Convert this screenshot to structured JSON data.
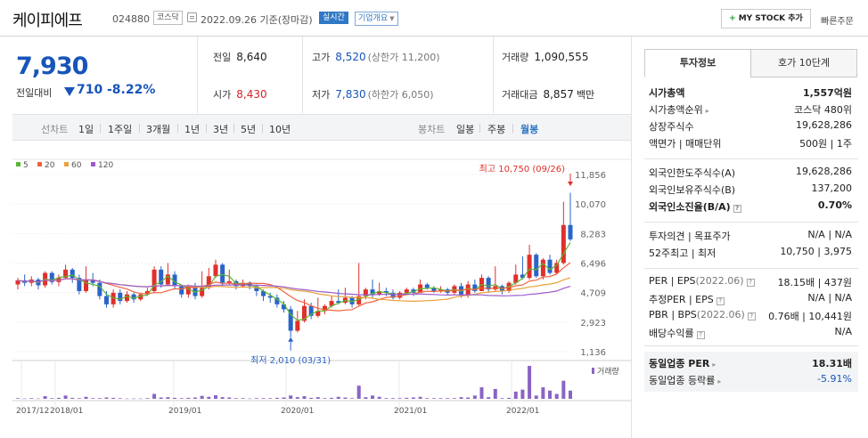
{
  "header": {
    "name": "케이피에프",
    "code": "024880",
    "market": "코스닥",
    "date": "2022.09.26 기준(장마감)",
    "realtime_label": "실시간",
    "overview_label": "기업개요",
    "mystock_label": "MY STOCK 추가",
    "quick_label": "빠른주문"
  },
  "price": {
    "current": "7,930",
    "change_label": "전일대비",
    "change": "710",
    "change_pct": "-8.22%"
  },
  "stats": {
    "prev_label": "전일",
    "prev": "8,640",
    "open_label": "시가",
    "open": "8,430",
    "high_label": "고가",
    "high": "8,520",
    "upper_limit": "(상한가 11,200)",
    "low_label": "저가",
    "low": "7,830",
    "lower_limit": "(하한가 6,050)",
    "volume_label": "거래량",
    "volume": "1,090,555",
    "amount_label": "거래대금",
    "amount": "8,857",
    "amount_unit": "백만"
  },
  "periods": {
    "line_label": "선차트",
    "line_items": [
      "1일",
      "1주일",
      "3개월",
      "1년",
      "3년",
      "5년",
      "10년"
    ],
    "candle_label": "봉차트",
    "candle_items": [
      "일봉",
      "주봉",
      "월봉"
    ],
    "active_candle": "월봉"
  },
  "chart_data": {
    "type": "candlestick",
    "ma_legend": [
      {
        "label": "5",
        "color": "#5cb531"
      },
      {
        "label": "20",
        "color": "#f0623c"
      },
      {
        "label": "60",
        "color": "#e9a23b"
      },
      {
        "label": "120",
        "color": "#9b5bcc"
      }
    ],
    "ylim": [
      1136,
      11856
    ],
    "y_ticks": [
      "11,856",
      "10,070",
      "8,283",
      "6,496",
      "4,709",
      "2,923",
      "1,136"
    ],
    "x_ticks": [
      "2017/12",
      "2018/01",
      "2019/01",
      "2020/01",
      "2021/01",
      "2022/01"
    ],
    "max_annotation": "최고 10,750 (09/26)",
    "min_annotation": "최저 2,010 (03/31)",
    "volume_label": "거래량",
    "candles": [
      [
        5200,
        5450,
        5600,
        4900
      ],
      [
        5450,
        5300,
        5800,
        5100
      ],
      [
        5300,
        5500,
        5700,
        5100
      ],
      [
        5500,
        5150,
        5600,
        4900
      ],
      [
        5150,
        5900,
        6000,
        5000
      ],
      [
        5900,
        5350,
        6000,
        5200
      ],
      [
        5350,
        5600,
        5800,
        5100
      ],
      [
        5600,
        6100,
        6400,
        5500
      ],
      [
        6100,
        5600,
        6200,
        5300
      ],
      [
        5600,
        4800,
        5800,
        4600
      ],
      [
        4800,
        5500,
        6300,
        4700
      ],
      [
        5500,
        5300,
        5900,
        5100
      ],
      [
        5300,
        4500,
        5500,
        4300
      ],
      [
        4500,
        4000,
        4800,
        3800
      ],
      [
        4000,
        4700,
        4900,
        3800
      ],
      [
        4700,
        4200,
        4900,
        4000
      ],
      [
        4200,
        4600,
        4800,
        4100
      ],
      [
        4600,
        4300,
        4700,
        4100
      ],
      [
        4300,
        4600,
        4700,
        4200
      ],
      [
        4600,
        4800,
        5000,
        4500
      ],
      [
        4800,
        6100,
        6300,
        4700
      ],
      [
        6100,
        5200,
        6300,
        5000
      ],
      [
        5200,
        5800,
        6500,
        5100
      ],
      [
        5800,
        5100,
        6000,
        4900
      ],
      [
        5100,
        4600,
        5200,
        4400
      ],
      [
        4600,
        5100,
        5200,
        4400
      ],
      [
        5100,
        4500,
        5300,
        4300
      ],
      [
        4500,
        5000,
        6000,
        4400
      ],
      [
        5000,
        5700,
        6200,
        4900
      ],
      [
        5700,
        6400,
        6700,
        5600
      ],
      [
        6400,
        5300,
        6500,
        5100
      ],
      [
        5300,
        5400,
        6100,
        5200
      ],
      [
        5400,
        5100,
        5500,
        4900
      ],
      [
        5100,
        5300,
        5500,
        5000
      ],
      [
        5300,
        5100,
        5400,
        4900
      ],
      [
        5100,
        4800,
        5200,
        4500
      ],
      [
        4800,
        4500,
        4900,
        4200
      ],
      [
        4500,
        4400,
        4700,
        4100
      ],
      [
        4400,
        4000,
        4600,
        3800
      ],
      [
        4000,
        3700,
        4200,
        3500
      ],
      [
        3700,
        2400,
        3900,
        2010
      ],
      [
        2400,
        3000,
        3600,
        2300
      ],
      [
        3000,
        3900,
        4300,
        2900
      ],
      [
        3900,
        3300,
        4100,
        3100
      ],
      [
        3300,
        3600,
        4400,
        3200
      ],
      [
        3600,
        3900,
        4000,
        3400
      ],
      [
        3900,
        4200,
        4500,
        3800
      ],
      [
        4200,
        4100,
        4900,
        4000
      ],
      [
        4100,
        4400,
        5000,
        4000
      ],
      [
        4400,
        4000,
        4500,
        3800
      ],
      [
        4000,
        4500,
        6500,
        3900
      ],
      [
        4500,
        4900,
        5000,
        4300
      ],
      [
        4900,
        4600,
        5500,
        4400
      ],
      [
        4600,
        4800,
        5300,
        4500
      ],
      [
        4800,
        4700,
        5000,
        4500
      ],
      [
        4700,
        4400,
        4900,
        4300
      ],
      [
        4400,
        4700,
        4800,
        4300
      ],
      [
        4700,
        4900,
        5000,
        4600
      ],
      [
        4900,
        4700,
        5000,
        4500
      ],
      [
        4700,
        5200,
        5500,
        4700
      ],
      [
        5200,
        5000,
        5300,
        4900
      ],
      [
        5000,
        4800,
        5100,
        4700
      ],
      [
        4800,
        4900,
        5100,
        4700
      ],
      [
        4900,
        4700,
        5000,
        4600
      ],
      [
        4700,
        5100,
        5200,
        4600
      ],
      [
        5100,
        4600,
        5300,
        4400
      ],
      [
        4600,
        5200,
        5400,
        4400
      ],
      [
        5200,
        4800,
        5500,
        4700
      ],
      [
        4800,
        5600,
        5800,
        4800
      ],
      [
        5600,
        4900,
        5700,
        4700
      ],
      [
        4900,
        5100,
        6300,
        4800
      ],
      [
        5100,
        4800,
        5200,
        4600
      ],
      [
        4800,
        5300,
        5400,
        4700
      ],
      [
        5300,
        5800,
        6400,
        5200
      ],
      [
        5800,
        5600,
        6900,
        5500
      ],
      [
        5600,
        7000,
        7600,
        5500
      ],
      [
        7000,
        5700,
        7100,
        5600
      ],
      [
        5700,
        6700,
        6800,
        5500
      ],
      [
        6700,
        5900,
        7000,
        5800
      ],
      [
        5900,
        6500,
        6700,
        5800
      ],
      [
        6500,
        8800,
        10200,
        6400
      ],
      [
        8800,
        7930,
        10750,
        7830
      ]
    ],
    "volumes": [
      0.02,
      0.01,
      0.02,
      0.01,
      0.08,
      0.02,
      0.03,
      0.1,
      0.03,
      0.02,
      0.06,
      0.02,
      0.02,
      0.04,
      0.03,
      0.02,
      0.01,
      0.01,
      0.01,
      0.02,
      0.15,
      0.04,
      0.05,
      0.03,
      0.02,
      0.03,
      0.04,
      0.09,
      0.06,
      0.11,
      0.05,
      0.04,
      0.02,
      0.02,
      0.01,
      0.02,
      0.02,
      0.02,
      0.03,
      0.04,
      0.1,
      0.05,
      0.08,
      0.03,
      0.05,
      0.02,
      0.03,
      0.06,
      0.04,
      0.02,
      0.4,
      0.05,
      0.1,
      0.06,
      0.02,
      0.02,
      0.02,
      0.03,
      0.04,
      0.06,
      0.02,
      0.02,
      0.02,
      0.02,
      0.02,
      0.05,
      0.04,
      0.1,
      0.35,
      0.05,
      0.3,
      0.02,
      0.03,
      0.22,
      0.28,
      1.0,
      0.1,
      0.35,
      0.25,
      0.15,
      0.55,
      0.25
    ]
  },
  "invest": {
    "tab_active": "투자정보",
    "tab_other": "호가 10단계",
    "rows": [
      {
        "k": "시가총액",
        "v": "1,557억원",
        "kb": true,
        "vb": true
      },
      {
        "k": "시가총액순위",
        "v": "코스닥 480위",
        "arrow": "▸"
      },
      {
        "k": "상장주식수",
        "v": "19,628,286"
      },
      {
        "k": "액면가 | 매매단위",
        "v": "500원 | 1주"
      },
      {
        "k": "외국인한도주식수(A)",
        "v": "19,628,286"
      },
      {
        "k": "외국인보유주식수(B)",
        "v": "137,200"
      },
      {
        "k": "외국인소진율(B/A)",
        "v": "0.70%",
        "kb": true,
        "vb": true,
        "q": true
      },
      {
        "k": "투자의견 | 목표주가",
        "v": "N/A | N/A"
      },
      {
        "k": "52주최고 | 최저",
        "v": "10,750 | 3,975"
      },
      {
        "k": "PER | EPS",
        "kg": "(2022.06)",
        "v": "18.15배 | 437원",
        "q": true
      },
      {
        "k": "추정PER | EPS",
        "v": "N/A | N/A",
        "q": true
      },
      {
        "k": "PBR | BPS",
        "kg": "(2022.06)",
        "v": "0.76배 | 10,441원",
        "q": true
      },
      {
        "k": "배당수익률",
        "v": "N/A",
        "q": true
      },
      {
        "k": "동일업종 PER",
        "v": "18.31배",
        "kb": true,
        "vb": true,
        "arrow": "▸"
      },
      {
        "k": "동일업종 등락률",
        "v": "-5.91%",
        "vclass": "blue",
        "arrow": "▸"
      }
    ]
  }
}
